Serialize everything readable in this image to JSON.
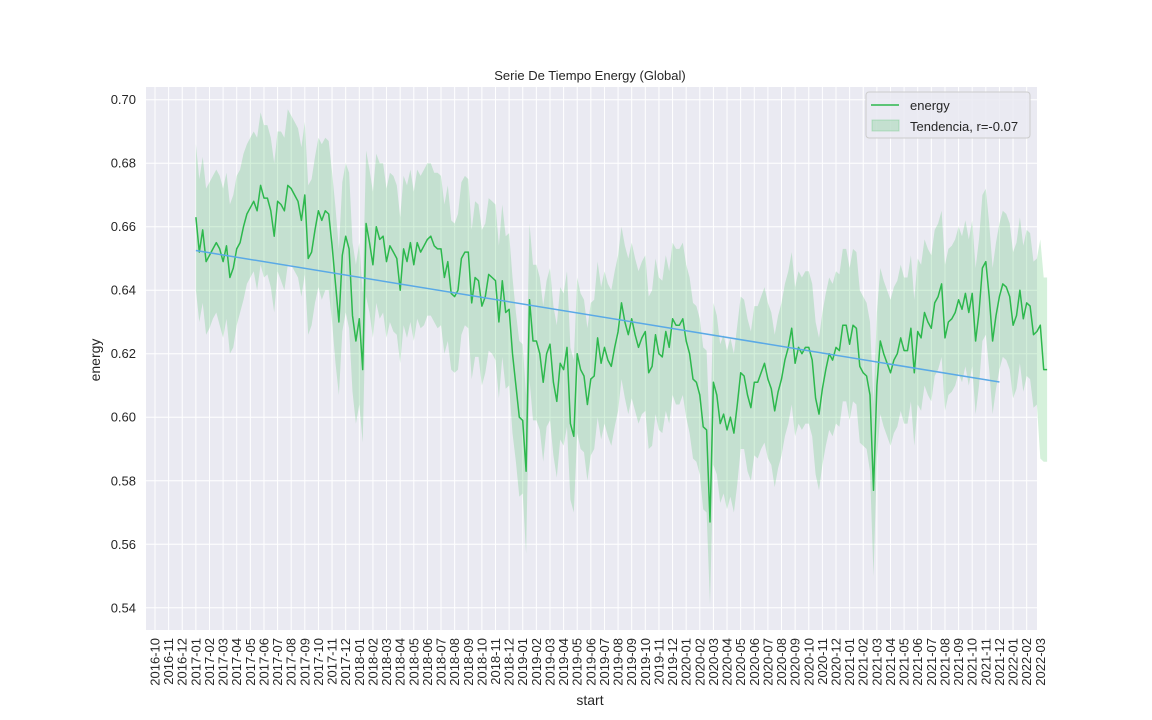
{
  "chart_data": {
    "type": "line",
    "title": "Serie De Tiempo Energy (Global)",
    "xlabel": "start",
    "ylabel": "energy",
    "ylim": [
      0.533,
      0.704
    ],
    "xlim": [
      "2016-10",
      "2022-03"
    ],
    "yticks": [
      0.54,
      0.56,
      0.58,
      0.6,
      0.62,
      0.64,
      0.66,
      0.68,
      0.7
    ],
    "ytick_labels": [
      "0.54",
      "0.56",
      "0.58",
      "0.60",
      "0.62",
      "0.64",
      "0.66",
      "0.68",
      "0.70"
    ],
    "xtick_labels": [
      "2016-10",
      "2016-11",
      "2016-12",
      "2017-01",
      "2017-02",
      "2017-03",
      "2017-04",
      "2017-05",
      "2017-06",
      "2017-07",
      "2017-08",
      "2017-09",
      "2017-10",
      "2017-11",
      "2017-12",
      "2018-01",
      "2018-02",
      "2018-03",
      "2018-04",
      "2018-05",
      "2018-06",
      "2018-07",
      "2018-08",
      "2018-09",
      "2018-10",
      "2018-11",
      "2018-12",
      "2019-01",
      "2019-02",
      "2019-03",
      "2019-04",
      "2019-05",
      "2019-06",
      "2019-07",
      "2019-08",
      "2019-09",
      "2019-10",
      "2019-11",
      "2019-12",
      "2020-01",
      "2020-02",
      "2020-03",
      "2020-04",
      "2020-05",
      "2020-06",
      "2020-07",
      "2020-08",
      "2020-09",
      "2020-10",
      "2020-11",
      "2020-12",
      "2021-01",
      "2021-02",
      "2021-03",
      "2021-04",
      "2021-05",
      "2021-06",
      "2021-07",
      "2021-08",
      "2021-09",
      "2021-10",
      "2021-11",
      "2021-12",
      "2022-01",
      "2022-02",
      "2022-03"
    ],
    "grid": true,
    "legend_position": "top-right",
    "series": [
      {
        "name": "energy",
        "color": "#2db84d",
        "x_start": "2017-01",
        "points_per_month": 4,
        "values": [
          0.663,
          0.652,
          0.659,
          0.649,
          0.651,
          0.653,
          0.655,
          0.653,
          0.649,
          0.654,
          0.644,
          0.647,
          0.653,
          0.655,
          0.66,
          0.664,
          0.666,
          0.668,
          0.665,
          0.673,
          0.669,
          0.669,
          0.665,
          0.657,
          0.668,
          0.667,
          0.665,
          0.673,
          0.672,
          0.67,
          0.668,
          0.662,
          0.67,
          0.65,
          0.652,
          0.659,
          0.665,
          0.662,
          0.665,
          0.664,
          0.654,
          0.642,
          0.63,
          0.651,
          0.657,
          0.653,
          0.632,
          0.624,
          0.631,
          0.615,
          0.661,
          0.655,
          0.648,
          0.66,
          0.656,
          0.657,
          0.649,
          0.654,
          0.652,
          0.65,
          0.64,
          0.653,
          0.649,
          0.655,
          0.648,
          0.655,
          0.652,
          0.654,
          0.656,
          0.657,
          0.654,
          0.653,
          0.653,
          0.644,
          0.649,
          0.639,
          0.638,
          0.64,
          0.65,
          0.652,
          0.652,
          0.636,
          0.644,
          0.643,
          0.635,
          0.638,
          0.645,
          0.644,
          0.643,
          0.63,
          0.643,
          0.633,
          0.634,
          0.62,
          0.61,
          0.6,
          0.599,
          0.583,
          0.637,
          0.624,
          0.624,
          0.62,
          0.611,
          0.62,
          0.623,
          0.611,
          0.605,
          0.617,
          0.615,
          0.622,
          0.598,
          0.594,
          0.62,
          0.615,
          0.613,
          0.604,
          0.612,
          0.613,
          0.625,
          0.617,
          0.622,
          0.618,
          0.616,
          0.622,
          0.627,
          0.636,
          0.63,
          0.626,
          0.631,
          0.626,
          0.622,
          0.625,
          0.627,
          0.614,
          0.616,
          0.626,
          0.62,
          0.619,
          0.627,
          0.622,
          0.631,
          0.629,
          0.629,
          0.631,
          0.624,
          0.62,
          0.612,
          0.611,
          0.607,
          0.597,
          0.596,
          0.567,
          0.611,
          0.607,
          0.598,
          0.601,
          0.596,
          0.6,
          0.595,
          0.604,
          0.614,
          0.613,
          0.607,
          0.603,
          0.611,
          0.611,
          0.614,
          0.617,
          0.612,
          0.609,
          0.602,
          0.608,
          0.612,
          0.618,
          0.622,
          0.628,
          0.617,
          0.622,
          0.62,
          0.622,
          0.622,
          0.618,
          0.606,
          0.601,
          0.609,
          0.615,
          0.62,
          0.618,
          0.622,
          0.621,
          0.629,
          0.629,
          0.623,
          0.629,
          0.628,
          0.616,
          0.614,
          0.613,
          0.607,
          0.577,
          0.61,
          0.624,
          0.62,
          0.617,
          0.614,
          0.618,
          0.62,
          0.625,
          0.621,
          0.621,
          0.628,
          0.614,
          0.627,
          0.625,
          0.633,
          0.63,
          0.628,
          0.636,
          0.638,
          0.642,
          0.625,
          0.63,
          0.631,
          0.633,
          0.637,
          0.634,
          0.639,
          0.633,
          0.639,
          0.624,
          0.633,
          0.647,
          0.649,
          0.638,
          0.624,
          0.632,
          0.638,
          0.642,
          0.641,
          0.638,
          0.629,
          0.632,
          0.64,
          0.631,
          0.636,
          0.635,
          0.626,
          0.627,
          0.629,
          0.615,
          0.615
        ],
        "ci_lower": [
          0.64,
          0.63,
          0.636,
          0.626,
          0.628,
          0.631,
          0.633,
          0.629,
          0.625,
          0.631,
          0.62,
          0.622,
          0.629,
          0.633,
          0.637,
          0.642,
          0.644,
          0.646,
          0.64,
          0.648,
          0.644,
          0.645,
          0.641,
          0.633,
          0.646,
          0.643,
          0.64,
          0.648,
          0.648,
          0.646,
          0.644,
          0.638,
          0.645,
          0.626,
          0.629,
          0.636,
          0.641,
          0.637,
          0.64,
          0.64,
          0.63,
          0.617,
          0.607,
          0.627,
          0.633,
          0.628,
          0.608,
          0.598,
          0.604,
          0.592,
          0.638,
          0.633,
          0.625,
          0.636,
          0.631,
          0.633,
          0.625,
          0.63,
          0.627,
          0.626,
          0.617,
          0.629,
          0.625,
          0.63,
          0.624,
          0.631,
          0.628,
          0.629,
          0.632,
          0.632,
          0.63,
          0.628,
          0.629,
          0.62,
          0.624,
          0.615,
          0.614,
          0.615,
          0.626,
          0.629,
          0.628,
          0.612,
          0.619,
          0.619,
          0.61,
          0.614,
          0.621,
          0.62,
          0.618,
          0.606,
          0.619,
          0.609,
          0.61,
          0.595,
          0.586,
          0.575,
          0.576,
          0.557,
          0.612,
          0.599,
          0.599,
          0.596,
          0.586,
          0.597,
          0.599,
          0.588,
          0.581,
          0.593,
          0.591,
          0.597,
          0.574,
          0.57,
          0.595,
          0.59,
          0.589,
          0.58,
          0.588,
          0.59,
          0.6,
          0.593,
          0.598,
          0.594,
          0.591,
          0.597,
          0.602,
          0.612,
          0.606,
          0.601,
          0.606,
          0.602,
          0.598,
          0.601,
          0.602,
          0.59,
          0.591,
          0.601,
          0.596,
          0.595,
          0.602,
          0.598,
          0.607,
          0.604,
          0.604,
          0.607,
          0.6,
          0.595,
          0.587,
          0.586,
          0.582,
          0.571,
          0.57,
          0.541,
          0.585,
          0.582,
          0.573,
          0.576,
          0.571,
          0.575,
          0.57,
          0.579,
          0.59,
          0.59,
          0.583,
          0.58,
          0.588,
          0.587,
          0.59,
          0.592,
          0.587,
          0.585,
          0.578,
          0.584,
          0.588,
          0.594,
          0.598,
          0.604,
          0.594,
          0.598,
          0.596,
          0.598,
          0.598,
          0.594,
          0.582,
          0.577,
          0.585,
          0.591,
          0.596,
          0.594,
          0.598,
          0.597,
          0.605,
          0.605,
          0.599,
          0.605,
          0.604,
          0.592,
          0.591,
          0.59,
          0.583,
          0.55,
          0.587,
          0.601,
          0.597,
          0.594,
          0.591,
          0.595,
          0.597,
          0.602,
          0.598,
          0.598,
          0.605,
          0.591,
          0.604,
          0.602,
          0.61,
          0.607,
          0.605,
          0.613,
          0.615,
          0.619,
          0.602,
          0.607,
          0.608,
          0.61,
          0.614,
          0.611,
          0.616,
          0.61,
          0.616,
          0.601,
          0.61,
          0.624,
          0.626,
          0.615,
          0.601,
          0.609,
          0.615,
          0.619,
          0.618,
          0.615,
          0.606,
          0.609,
          0.617,
          0.608,
          0.613,
          0.612,
          0.603,
          0.604,
          0.587,
          0.586,
          0.586
        ],
        "ci_upper": [
          0.686,
          0.675,
          0.682,
          0.672,
          0.674,
          0.676,
          0.678,
          0.676,
          0.672,
          0.677,
          0.667,
          0.67,
          0.676,
          0.678,
          0.683,
          0.686,
          0.688,
          0.69,
          0.688,
          0.696,
          0.692,
          0.692,
          0.688,
          0.68,
          0.69,
          0.69,
          0.688,
          0.697,
          0.695,
          0.693,
          0.691,
          0.685,
          0.693,
          0.673,
          0.675,
          0.682,
          0.688,
          0.686,
          0.688,
          0.687,
          0.677,
          0.666,
          0.653,
          0.674,
          0.68,
          0.677,
          0.655,
          0.648,
          0.655,
          0.639,
          0.684,
          0.678,
          0.671,
          0.683,
          0.68,
          0.68,
          0.672,
          0.677,
          0.676,
          0.673,
          0.663,
          0.676,
          0.673,
          0.678,
          0.671,
          0.678,
          0.676,
          0.678,
          0.68,
          0.68,
          0.677,
          0.677,
          0.676,
          0.667,
          0.673,
          0.662,
          0.661,
          0.664,
          0.674,
          0.676,
          0.675,
          0.659,
          0.668,
          0.667,
          0.659,
          0.661,
          0.669,
          0.668,
          0.667,
          0.654,
          0.667,
          0.657,
          0.658,
          0.644,
          0.633,
          0.624,
          0.623,
          0.607,
          0.661,
          0.648,
          0.648,
          0.644,
          0.635,
          0.643,
          0.647,
          0.635,
          0.629,
          0.641,
          0.639,
          0.646,
          0.622,
          0.618,
          0.644,
          0.639,
          0.637,
          0.628,
          0.636,
          0.637,
          0.649,
          0.641,
          0.646,
          0.642,
          0.64,
          0.646,
          0.651,
          0.66,
          0.654,
          0.65,
          0.655,
          0.65,
          0.646,
          0.649,
          0.651,
          0.638,
          0.64,
          0.65,
          0.644,
          0.643,
          0.651,
          0.646,
          0.655,
          0.653,
          0.653,
          0.655,
          0.648,
          0.644,
          0.636,
          0.635,
          0.631,
          0.622,
          0.621,
          0.592,
          0.636,
          0.632,
          0.623,
          0.626,
          0.621,
          0.625,
          0.62,
          0.629,
          0.638,
          0.637,
          0.631,
          0.627,
          0.635,
          0.635,
          0.638,
          0.641,
          0.636,
          0.633,
          0.626,
          0.632,
          0.636,
          0.642,
          0.646,
          0.652,
          0.641,
          0.646,
          0.644,
          0.646,
          0.646,
          0.642,
          0.63,
          0.625,
          0.633,
          0.639,
          0.644,
          0.642,
          0.646,
          0.645,
          0.653,
          0.653,
          0.647,
          0.653,
          0.652,
          0.64,
          0.638,
          0.636,
          0.63,
          0.604,
          0.633,
          0.647,
          0.643,
          0.64,
          0.637,
          0.641,
          0.643,
          0.648,
          0.644,
          0.644,
          0.651,
          0.637,
          0.65,
          0.648,
          0.656,
          0.653,
          0.651,
          0.659,
          0.661,
          0.665,
          0.648,
          0.653,
          0.654,
          0.656,
          0.66,
          0.657,
          0.662,
          0.656,
          0.662,
          0.647,
          0.656,
          0.67,
          0.672,
          0.661,
          0.647,
          0.655,
          0.661,
          0.665,
          0.664,
          0.661,
          0.652,
          0.655,
          0.663,
          0.654,
          0.659,
          0.658,
          0.649,
          0.65,
          0.656,
          0.644,
          0.644
        ]
      },
      {
        "name": "Tendencia, r=-0.07",
        "color": "#5aa9e6",
        "band_color": "#2db84d",
        "kind": "trend",
        "x_range": [
          "2017-01",
          "2021-12"
        ],
        "y_start": 0.6525,
        "y_end": 0.6111
      }
    ]
  }
}
